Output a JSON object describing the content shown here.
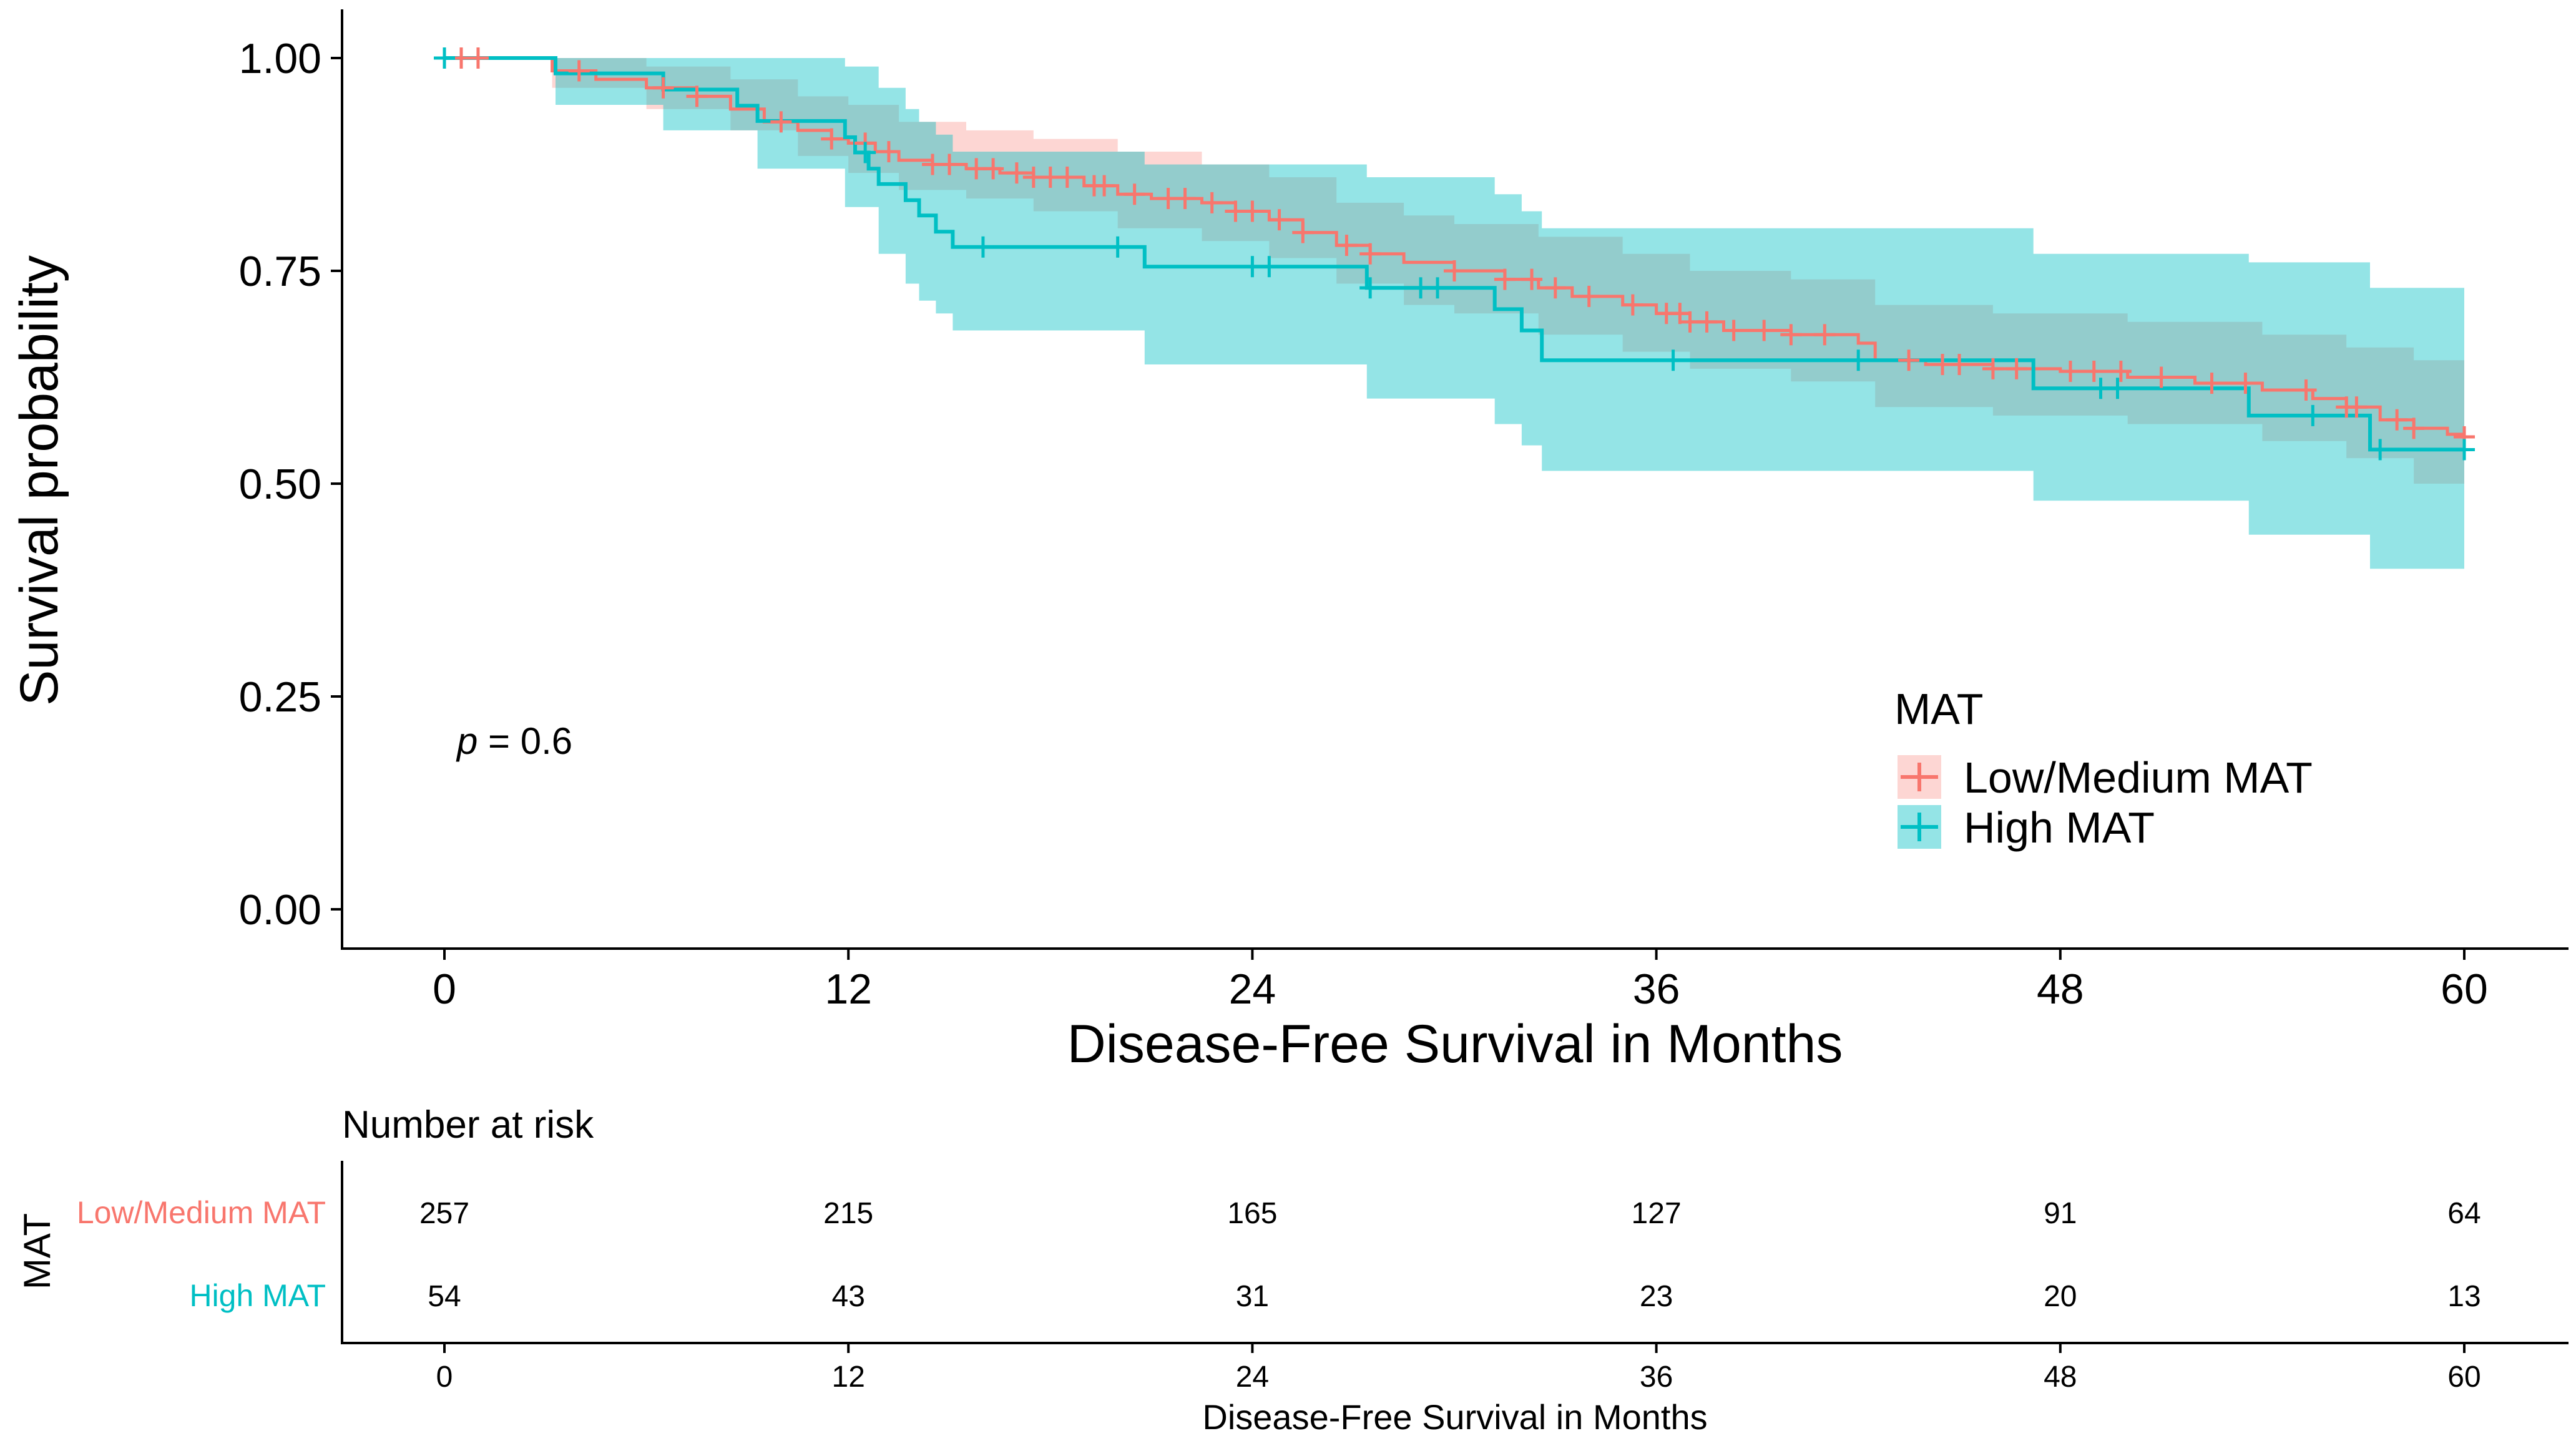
{
  "chart_data": [
    {
      "type": "line",
      "subtype": "kaplan-meier",
      "title": "",
      "xlabel": "Disease-Free Survival in Months",
      "ylabel": "Survival probability",
      "xlim": [
        0,
        60
      ],
      "ylim": [
        0,
        1
      ],
      "x_ticks": [
        0,
        12,
        24,
        36,
        48,
        60
      ],
      "x_tick_labels": [
        "0",
        "12",
        "24",
        "36",
        "48",
        "60"
      ],
      "y_ticks": [
        0,
        0.25,
        0.5,
        0.75,
        1
      ],
      "y_tick_labels": [
        "0.00",
        "0.25",
        "0.50",
        "0.75",
        "1.00"
      ],
      "grid": false,
      "annotation": {
        "label": "p",
        "text": " = 0.6",
        "x": 0.5,
        "y": 0.195
      },
      "legend": {
        "title": "MAT",
        "position": "bottom-right",
        "entries": [
          "Low/Medium MAT",
          "High MAT"
        ]
      },
      "series": [
        {
          "name": "Low/Medium MAT",
          "color": "#F8766D",
          "band_color": "#F8766D",
          "steps": [
            [
              0,
              1.0
            ],
            [
              3.2,
              0.985
            ],
            [
              4.5,
              0.975
            ],
            [
              6,
              0.965
            ],
            [
              7.5,
              0.955
            ],
            [
              8.5,
              0.94
            ],
            [
              9.5,
              0.925
            ],
            [
              10.5,
              0.915
            ],
            [
              11.5,
              0.905
            ],
            [
              12,
              0.9
            ],
            [
              12.8,
              0.89
            ],
            [
              13.5,
              0.88
            ],
            [
              14.5,
              0.875
            ],
            [
              15.5,
              0.87
            ],
            [
              16.5,
              0.865
            ],
            [
              17.5,
              0.86
            ],
            [
              19,
              0.85
            ],
            [
              20,
              0.84
            ],
            [
              21,
              0.835
            ],
            [
              22.5,
              0.83
            ],
            [
              23.5,
              0.82
            ],
            [
              24.5,
              0.81
            ],
            [
              25.5,
              0.795
            ],
            [
              26.5,
              0.78
            ],
            [
              27.5,
              0.77
            ],
            [
              28.5,
              0.76
            ],
            [
              30,
              0.75
            ],
            [
              31.5,
              0.74
            ],
            [
              32.5,
              0.73
            ],
            [
              33.5,
              0.72
            ],
            [
              35,
              0.71
            ],
            [
              36,
              0.7
            ],
            [
              37,
              0.69
            ],
            [
              38,
              0.68
            ],
            [
              40,
              0.675
            ],
            [
              42,
              0.665
            ],
            [
              42.5,
              0.645
            ],
            [
              44,
              0.64
            ],
            [
              46,
              0.635
            ],
            [
              48,
              0.632
            ],
            [
              50,
              0.625
            ],
            [
              52,
              0.618
            ],
            [
              54,
              0.61
            ],
            [
              55.5,
              0.6
            ],
            [
              56.5,
              0.59
            ],
            [
              57.5,
              0.575
            ],
            [
              58.5,
              0.565
            ],
            [
              59.5,
              0.558
            ],
            [
              60,
              0.555
            ]
          ],
          "lower": [
            [
              0,
              1.0
            ],
            [
              3.2,
              0.965
            ],
            [
              6,
              0.94
            ],
            [
              8.5,
              0.915
            ],
            [
              10.5,
              0.885
            ],
            [
              12,
              0.865
            ],
            [
              13.5,
              0.845
            ],
            [
              15.5,
              0.835
            ],
            [
              17.5,
              0.82
            ],
            [
              20,
              0.8
            ],
            [
              22.5,
              0.785
            ],
            [
              24.5,
              0.765
            ],
            [
              26.5,
              0.735
            ],
            [
              28.5,
              0.71
            ],
            [
              30,
              0.7
            ],
            [
              32.5,
              0.675
            ],
            [
              35,
              0.655
            ],
            [
              37,
              0.635
            ],
            [
              40,
              0.62
            ],
            [
              42.5,
              0.59
            ],
            [
              46,
              0.58
            ],
            [
              50,
              0.57
            ],
            [
              54,
              0.55
            ],
            [
              56.5,
              0.53
            ],
            [
              58.5,
              0.5
            ],
            [
              60,
              0.49
            ]
          ],
          "upper": [
            [
              0,
              1.0
            ],
            [
              3.2,
              1.0
            ],
            [
              6,
              0.99
            ],
            [
              8.5,
              0.975
            ],
            [
              10.5,
              0.955
            ],
            [
              12,
              0.945
            ],
            [
              13.5,
              0.925
            ],
            [
              15.5,
              0.915
            ],
            [
              17.5,
              0.905
            ],
            [
              20,
              0.89
            ],
            [
              22.5,
              0.875
            ],
            [
              24.5,
              0.86
            ],
            [
              26.5,
              0.83
            ],
            [
              28.5,
              0.815
            ],
            [
              30,
              0.805
            ],
            [
              32.5,
              0.79
            ],
            [
              35,
              0.77
            ],
            [
              37,
              0.75
            ],
            [
              40,
              0.74
            ],
            [
              42.5,
              0.71
            ],
            [
              46,
              0.7
            ],
            [
              50,
              0.69
            ],
            [
              54,
              0.675
            ],
            [
              56.5,
              0.66
            ],
            [
              58.5,
              0.645
            ],
            [
              60,
              0.64
            ]
          ],
          "censor_times": [
            0.5,
            1,
            4,
            6.5,
            7.5,
            10,
            11.5,
            12.5,
            13.2,
            14.5,
            15,
            15.8,
            16.3,
            17,
            17.5,
            18,
            18.5,
            19.3,
            19.6,
            20.5,
            21.5,
            22,
            22.8,
            23.5,
            24,
            24.8,
            25.5,
            26.8,
            27.5,
            30,
            31.5,
            32.3,
            33,
            34,
            35.3,
            36.3,
            36.7,
            37,
            37.5,
            38.3,
            39.2,
            40,
            41,
            43.5,
            44.5,
            45,
            46,
            46.7,
            48.3,
            49,
            49.8,
            51,
            52.5,
            53.5,
            55.3,
            56.5,
            56.8,
            58,
            58.5,
            60
          ],
          "risk_counts": [
            257,
            215,
            165,
            127,
            91,
            64
          ]
        },
        {
          "name": "High MAT",
          "color": "#00BFC4",
          "band_color": "#00BFC4",
          "steps": [
            [
              0,
              1.0
            ],
            [
              3.3,
              0.982
            ],
            [
              6.5,
              0.963
            ],
            [
              8.7,
              0.944
            ],
            [
              9.3,
              0.926
            ],
            [
              11.9,
              0.907
            ],
            [
              12.2,
              0.889
            ],
            [
              12.6,
              0.87
            ],
            [
              12.9,
              0.852
            ],
            [
              13.7,
              0.833
            ],
            [
              14.1,
              0.815
            ],
            [
              14.6,
              0.796
            ],
            [
              15.1,
              0.778
            ],
            [
              20.8,
              0.755
            ],
            [
              27.4,
              0.73
            ],
            [
              31.2,
              0.705
            ],
            [
              32,
              0.68
            ],
            [
              32.6,
              0.645
            ],
            [
              47.2,
              0.612
            ],
            [
              53.6,
              0.58
            ],
            [
              57.2,
              0.54
            ],
            [
              60,
              0.54
            ]
          ],
          "lower": [
            [
              0,
              1.0
            ],
            [
              3.3,
              0.945
            ],
            [
              6.5,
              0.915
            ],
            [
              9.3,
              0.87
            ],
            [
              11.9,
              0.825
            ],
            [
              12.9,
              0.77
            ],
            [
              13.7,
              0.735
            ],
            [
              14.1,
              0.715
            ],
            [
              14.6,
              0.7
            ],
            [
              15.1,
              0.68
            ],
            [
              20.8,
              0.64
            ],
            [
              27.4,
              0.6
            ],
            [
              31.2,
              0.57
            ],
            [
              32,
              0.545
            ],
            [
              32.6,
              0.515
            ],
            [
              47.2,
              0.48
            ],
            [
              53.6,
              0.44
            ],
            [
              57.2,
              0.4
            ],
            [
              60,
              0.4
            ]
          ],
          "upper": [
            [
              0,
              1.0
            ],
            [
              3.3,
              1.0
            ],
            [
              6.5,
              1.0
            ],
            [
              9.3,
              1.0
            ],
            [
              11.9,
              0.99
            ],
            [
              12.9,
              0.965
            ],
            [
              13.7,
              0.94
            ],
            [
              14.1,
              0.925
            ],
            [
              14.6,
              0.91
            ],
            [
              15.1,
              0.89
            ],
            [
              20.8,
              0.875
            ],
            [
              27.4,
              0.86
            ],
            [
              31.2,
              0.84
            ],
            [
              32,
              0.82
            ],
            [
              32.6,
              0.8
            ],
            [
              47.2,
              0.77
            ],
            [
              53.6,
              0.76
            ],
            [
              57.2,
              0.73
            ],
            [
              60,
              0.73
            ]
          ],
          "censor_times": [
            0,
            12.5,
            16,
            20,
            24,
            24.5,
            27.5,
            29,
            29.5,
            36.5,
            42,
            49.2,
            49.7,
            55.5,
            57.5,
            60
          ],
          "risk_counts": [
            54,
            43,
            31,
            23,
            20,
            13
          ]
        }
      ]
    },
    {
      "type": "table",
      "title": "Number at risk",
      "ylabel": "MAT",
      "xlabel": "Disease-Free Survival in Months",
      "x_ticks": [
        0,
        12,
        24,
        36,
        48,
        60
      ],
      "x_tick_labels": [
        "0",
        "12",
        "24",
        "36",
        "48",
        "60"
      ],
      "rows": [
        {
          "name": "Low/Medium MAT",
          "color": "#F8766D",
          "values": [
            "257",
            "215",
            "165",
            "127",
            "91",
            "64"
          ]
        },
        {
          "name": "High MAT",
          "color": "#00BFC4",
          "values": [
            "54",
            "43",
            "31",
            "23",
            "20",
            "13"
          ]
        }
      ]
    }
  ]
}
